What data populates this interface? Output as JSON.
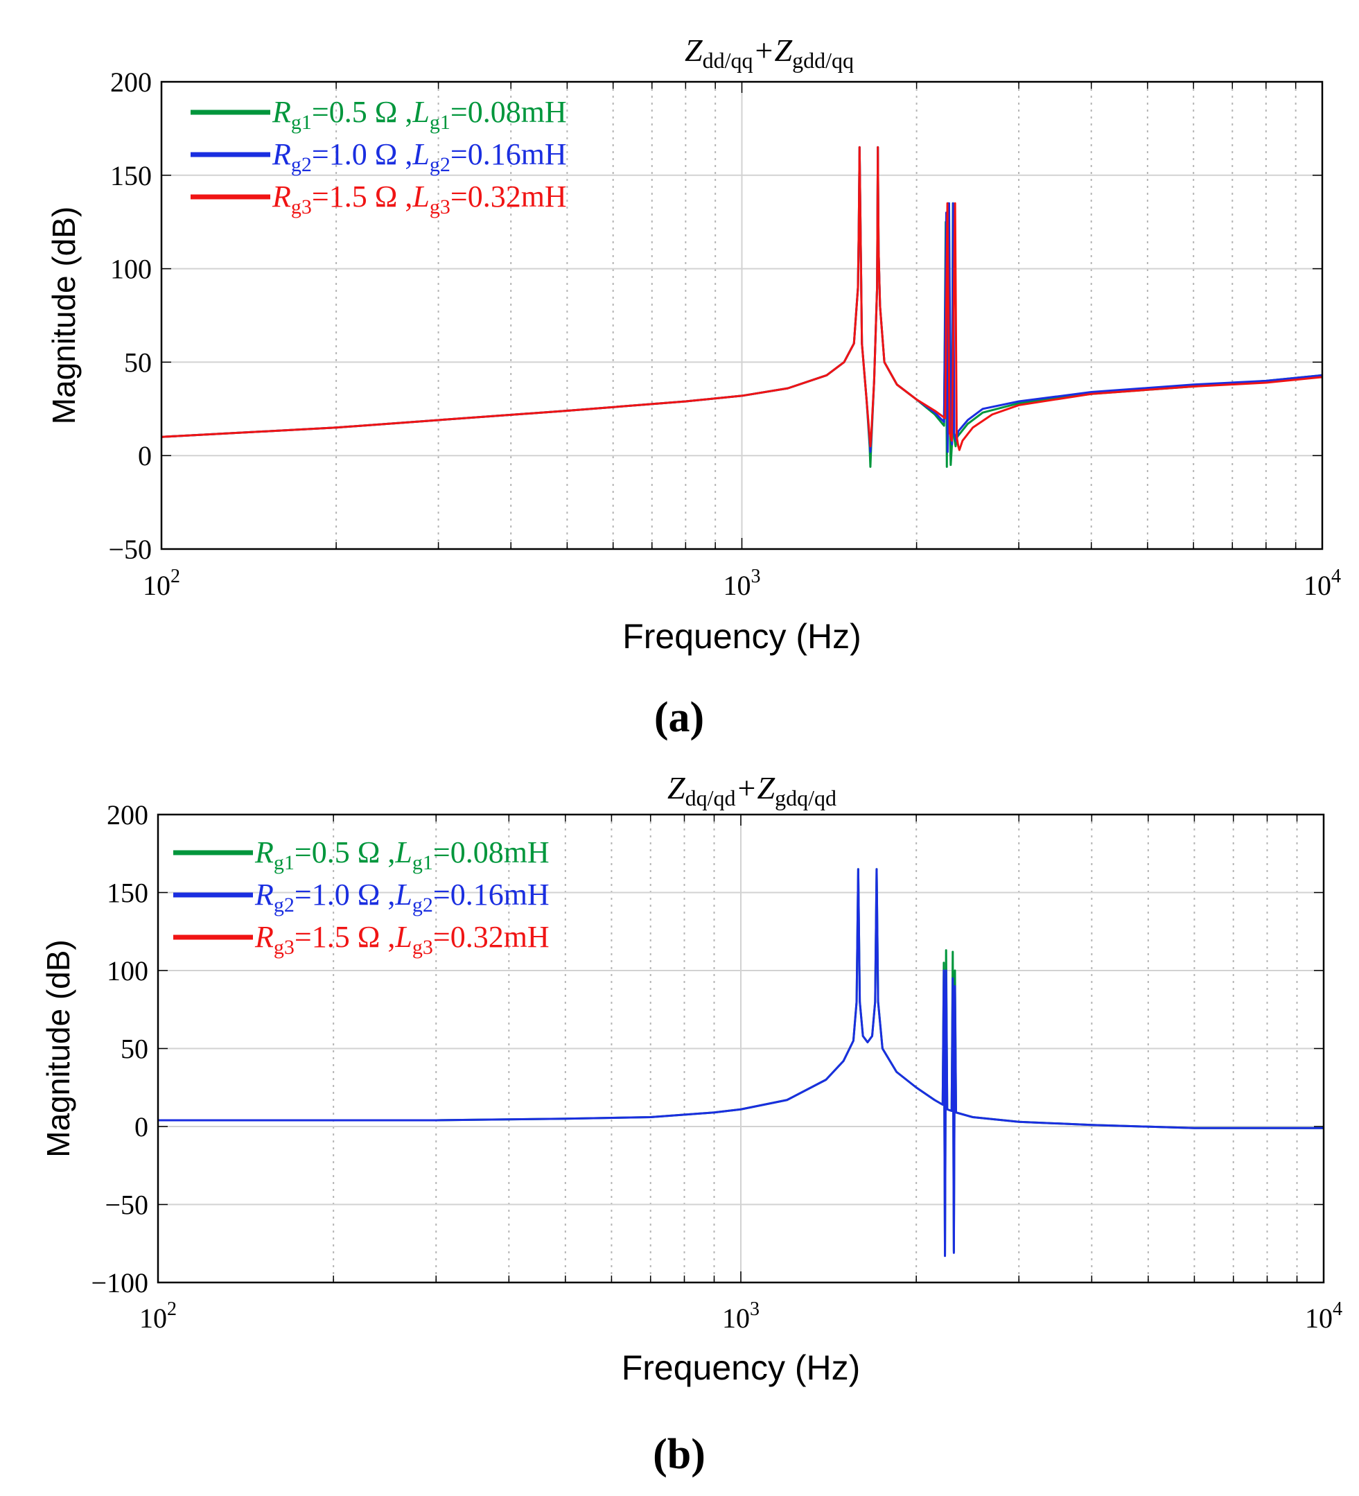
{
  "chart_data": [
    {
      "type": "line",
      "panel_label": "(a)",
      "title": {
        "p1": "Z",
        "s1": "dd/qq",
        "p2": "+Z",
        "s2": "gdd/qq"
      },
      "xlabel": "Frequency  (Hz)",
      "ylabel": "Magnitude (dB)",
      "x_scale": "log",
      "xlim": [
        100,
        10000
      ],
      "x_ticks": [
        {
          "value": 100,
          "base": "10",
          "exp": "2"
        },
        {
          "value": 1000,
          "base": "10",
          "exp": "3"
        },
        {
          "value": 10000,
          "base": "10",
          "exp": "4"
        }
      ],
      "ylim": [
        -50,
        200
      ],
      "y_ticks": [
        {
          "value": -50,
          "label": "−50"
        },
        {
          "value": 0,
          "label": "0"
        },
        {
          "value": 50,
          "label": "50"
        },
        {
          "value": 100,
          "label": "100"
        },
        {
          "value": 150,
          "label": "150"
        },
        {
          "value": 200,
          "label": "200"
        }
      ],
      "grid": true,
      "legend_position": "top-left",
      "series": [
        {
          "name": "Rg1=0.5 Ω ,Lg1=0.08mH",
          "legend": {
            "r_sub": "g1",
            "r_val": "=0.5 Ω ,",
            "l_sub": "g1",
            "l_val": "=0.08mH"
          },
          "color": "#00963c",
          "points": [
            [
              100,
              10
            ],
            [
              200,
              15
            ],
            [
              300,
              19
            ],
            [
              500,
              24
            ],
            [
              800,
              29
            ],
            [
              1000,
              32
            ],
            [
              1200,
              36
            ],
            [
              1400,
              43
            ],
            [
              1500,
              50
            ],
            [
              1560,
              60
            ],
            [
              1585,
              90
            ],
            [
              1590,
              120
            ],
            [
              1595,
              165
            ],
            [
              1600,
              130
            ],
            [
              1610,
              60
            ],
            [
              1640,
              30
            ],
            [
              1660,
              5
            ],
            [
              1665,
              -6
            ],
            [
              1670,
              5
            ],
            [
              1690,
              40
            ],
            [
              1710,
              90
            ],
            [
              1715,
              165
            ],
            [
              1720,
              110
            ],
            [
              1730,
              80
            ],
            [
              1760,
              50
            ],
            [
              1850,
              38
            ],
            [
              2000,
              30
            ],
            [
              2150,
              22
            ],
            [
              2230,
              16
            ],
            [
              2245,
              125
            ],
            [
              2255,
              -6
            ],
            [
              2265,
              135
            ],
            [
              2280,
              20
            ],
            [
              2290,
              -5
            ],
            [
              2300,
              5
            ],
            [
              2310,
              135
            ],
            [
              2320,
              10
            ],
            [
              2335,
              5
            ],
            [
              2350,
              10
            ],
            [
              2450,
              17
            ],
            [
              2600,
              23
            ],
            [
              3000,
              28
            ],
            [
              4000,
              33
            ],
            [
              6000,
              37
            ],
            [
              8000,
              40
            ],
            [
              10000,
              43
            ]
          ]
        },
        {
          "name": "Rg2=1.0 Ω ,Lg2=0.16mH",
          "legend": {
            "r_sub": "g2",
            "r_val": "=1.0 Ω ,",
            "l_sub": "g2",
            "l_val": "=0.16mH"
          },
          "color": "#1a2ee0",
          "points": [
            [
              100,
              10
            ],
            [
              200,
              15
            ],
            [
              300,
              19
            ],
            [
              500,
              24
            ],
            [
              800,
              29
            ],
            [
              1000,
              32
            ],
            [
              1200,
              36
            ],
            [
              1400,
              43
            ],
            [
              1500,
              50
            ],
            [
              1560,
              60
            ],
            [
              1585,
              90
            ],
            [
              1590,
              120
            ],
            [
              1595,
              165
            ],
            [
              1600,
              130
            ],
            [
              1610,
              60
            ],
            [
              1640,
              30
            ],
            [
              1660,
              8
            ],
            [
              1665,
              2
            ],
            [
              1670,
              8
            ],
            [
              1690,
              40
            ],
            [
              1710,
              90
            ],
            [
              1715,
              165
            ],
            [
              1720,
              110
            ],
            [
              1730,
              80
            ],
            [
              1760,
              50
            ],
            [
              1850,
              38
            ],
            [
              2000,
              30
            ],
            [
              2150,
              23
            ],
            [
              2230,
              18
            ],
            [
              2250,
              130
            ],
            [
              2262,
              2
            ],
            [
              2275,
              135
            ],
            [
              2290,
              12
            ],
            [
              2302,
              6
            ],
            [
              2312,
              135
            ],
            [
              2322,
              12
            ],
            [
              2340,
              8
            ],
            [
              2360,
              13
            ],
            [
              2450,
              19
            ],
            [
              2600,
              25
            ],
            [
              3000,
              29
            ],
            [
              4000,
              34
            ],
            [
              6000,
              38
            ],
            [
              8000,
              40
            ],
            [
              10000,
              43
            ]
          ]
        },
        {
          "name": "Rg3=1.5 Ω ,Lg3=0.32mH",
          "legend": {
            "r_sub": "g3",
            "r_val": "=1.5 Ω ,",
            "l_sub": "g3",
            "l_val": "=0.32mH"
          },
          "color": "#f01414",
          "points": [
            [
              100,
              10
            ],
            [
              200,
              15
            ],
            [
              300,
              19
            ],
            [
              500,
              24
            ],
            [
              800,
              29
            ],
            [
              1000,
              32
            ],
            [
              1200,
              36
            ],
            [
              1400,
              43
            ],
            [
              1500,
              50
            ],
            [
              1560,
              60
            ],
            [
              1585,
              90
            ],
            [
              1590,
              120
            ],
            [
              1595,
              165
            ],
            [
              1600,
              130
            ],
            [
              1610,
              60
            ],
            [
              1640,
              30
            ],
            [
              1660,
              10
            ],
            [
              1665,
              5
            ],
            [
              1670,
              10
            ],
            [
              1690,
              40
            ],
            [
              1710,
              90
            ],
            [
              1715,
              165
            ],
            [
              1720,
              110
            ],
            [
              1730,
              80
            ],
            [
              1760,
              50
            ],
            [
              1850,
              38
            ],
            [
              2000,
              30
            ],
            [
              2150,
              24
            ],
            [
              2240,
              20
            ],
            [
              2260,
              135
            ],
            [
              2280,
              12
            ],
            [
              2300,
              8
            ],
            [
              2330,
              135
            ],
            [
              2345,
              10
            ],
            [
              2360,
              5
            ],
            [
              2370,
              3
            ],
            [
              2400,
              8
            ],
            [
              2500,
              15
            ],
            [
              2700,
              22
            ],
            [
              3000,
              27
            ],
            [
              4000,
              33
            ],
            [
              6000,
              37
            ],
            [
              8000,
              39
            ],
            [
              10000,
              42
            ]
          ]
        }
      ]
    },
    {
      "type": "line",
      "panel_label": "(b)",
      "title": {
        "p1": "Z",
        "s1": "dq/qd",
        "p2": "+Z",
        "s2": "gdq/qd"
      },
      "xlabel": "Frequency  (Hz)",
      "ylabel": "Magnitude (dB)",
      "x_scale": "log",
      "xlim": [
        100,
        10000
      ],
      "x_ticks": [
        {
          "value": 100,
          "base": "10",
          "exp": "2"
        },
        {
          "value": 1000,
          "base": "10",
          "exp": "3"
        },
        {
          "value": 10000,
          "base": "10",
          "exp": "4"
        }
      ],
      "ylim": [
        -100,
        200
      ],
      "y_ticks": [
        {
          "value": -100,
          "label": "−100"
        },
        {
          "value": -50,
          "label": "−50"
        },
        {
          "value": 0,
          "label": "0"
        },
        {
          "value": 50,
          "label": "50"
        },
        {
          "value": 100,
          "label": "100"
        },
        {
          "value": 150,
          "label": "150"
        },
        {
          "value": 200,
          "label": "200"
        }
      ],
      "grid": true,
      "legend_position": "top-left",
      "series": [
        {
          "name": "Rg1=0.5 Ω ,Lg1=0.08mH",
          "legend": {
            "r_sub": "g1",
            "r_val": "=0.5 Ω ,",
            "l_sub": "g1",
            "l_val": "=0.08mH"
          },
          "color": "#00963c",
          "points": [
            [
              100,
              4
            ],
            [
              200,
              4
            ],
            [
              300,
              4
            ],
            [
              500,
              5
            ],
            [
              700,
              6
            ],
            [
              900,
              9
            ],
            [
              1000,
              11
            ],
            [
              1200,
              17
            ],
            [
              1400,
              30
            ],
            [
              1500,
              42
            ],
            [
              1560,
              55
            ],
            [
              1580,
              80
            ],
            [
              1590,
              165
            ],
            [
              1600,
              80
            ],
            [
              1620,
              58
            ],
            [
              1650,
              54
            ],
            [
              1680,
              58
            ],
            [
              1700,
              80
            ],
            [
              1710,
              165
            ],
            [
              1720,
              80
            ],
            [
              1750,
              50
            ],
            [
              1850,
              35
            ],
            [
              2000,
              25
            ],
            [
              2150,
              17
            ],
            [
              2220,
              14
            ],
            [
              2230,
              105
            ],
            [
              2240,
              -82
            ],
            [
              2250,
              113
            ],
            [
              2260,
              11
            ],
            [
              2300,
              10
            ],
            [
              2310,
              112
            ],
            [
              2320,
              -80
            ],
            [
              2330,
              100
            ],
            [
              2340,
              9
            ],
            [
              2500,
              6
            ],
            [
              3000,
              3
            ],
            [
              4000,
              1
            ],
            [
              6000,
              -1
            ],
            [
              8000,
              -1
            ],
            [
              10000,
              -1
            ]
          ]
        },
        {
          "name": "Rg2=1.0 Ω ,Lg2=0.16mH",
          "legend": {
            "r_sub": "g2",
            "r_val": "=1.0 Ω ,",
            "l_sub": "g2",
            "l_val": "=0.16mH"
          },
          "color": "#1a2ee0",
          "points": [
            [
              100,
              4
            ],
            [
              200,
              4
            ],
            [
              300,
              4
            ],
            [
              500,
              5
            ],
            [
              700,
              6
            ],
            [
              900,
              9
            ],
            [
              1000,
              11
            ],
            [
              1200,
              17
            ],
            [
              1400,
              30
            ],
            [
              1500,
              42
            ],
            [
              1560,
              55
            ],
            [
              1580,
              80
            ],
            [
              1590,
              165
            ],
            [
              1600,
              80
            ],
            [
              1620,
              58
            ],
            [
              1650,
              54
            ],
            [
              1680,
              58
            ],
            [
              1700,
              80
            ],
            [
              1710,
              165
            ],
            [
              1720,
              80
            ],
            [
              1750,
              50
            ],
            [
              1850,
              35
            ],
            [
              2000,
              25
            ],
            [
              2150,
              17
            ],
            [
              2220,
              14
            ],
            [
              2230,
              100
            ],
            [
              2240,
              -83
            ],
            [
              2250,
              100
            ],
            [
              2260,
              11
            ],
            [
              2300,
              10
            ],
            [
              2310,
              95
            ],
            [
              2320,
              -81
            ],
            [
              2330,
              90
            ],
            [
              2340,
              9
            ],
            [
              2500,
              6
            ],
            [
              3000,
              3
            ],
            [
              4000,
              1
            ],
            [
              6000,
              -1
            ],
            [
              8000,
              -1
            ],
            [
              10000,
              -1
            ]
          ]
        },
        {
          "name": "Rg3=1.5 Ω ,Lg3=0.32mH",
          "legend": {
            "r_sub": "g3",
            "r_val": "=1.5 Ω ,",
            "l_sub": "g3",
            "l_val": "=0.32mH"
          },
          "color": "#f01414",
          "points": []
        }
      ]
    }
  ]
}
